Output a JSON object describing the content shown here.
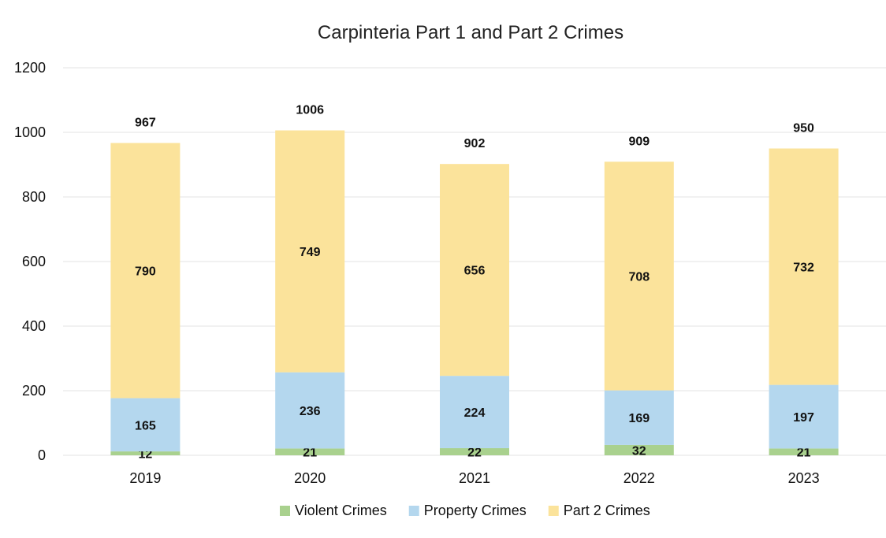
{
  "chart_data": {
    "type": "bar",
    "stacked": true,
    "title": "Carpinteria Part 1 and Part 2 Crimes",
    "categories": [
      "2019",
      "2020",
      "2021",
      "2022",
      "2023"
    ],
    "series": [
      {
        "name": "Violent Crimes",
        "values": [
          12,
          21,
          22,
          32,
          21
        ],
        "color": "#a9d18e"
      },
      {
        "name": "Property Crimes",
        "values": [
          165,
          236,
          224,
          169,
          197
        ],
        "color": "#b4d7ee"
      },
      {
        "name": "Part 2 Crimes",
        "values": [
          790,
          749,
          656,
          708,
          732
        ],
        "color": "#fbe39b"
      }
    ],
    "totals": [
      967,
      1006,
      902,
      909,
      950
    ],
    "yticks": [
      "0",
      "200",
      "400",
      "600",
      "800",
      "1000",
      "1200"
    ],
    "ylim": [
      0,
      1200
    ],
    "grid": true,
    "legend": "bottom"
  }
}
